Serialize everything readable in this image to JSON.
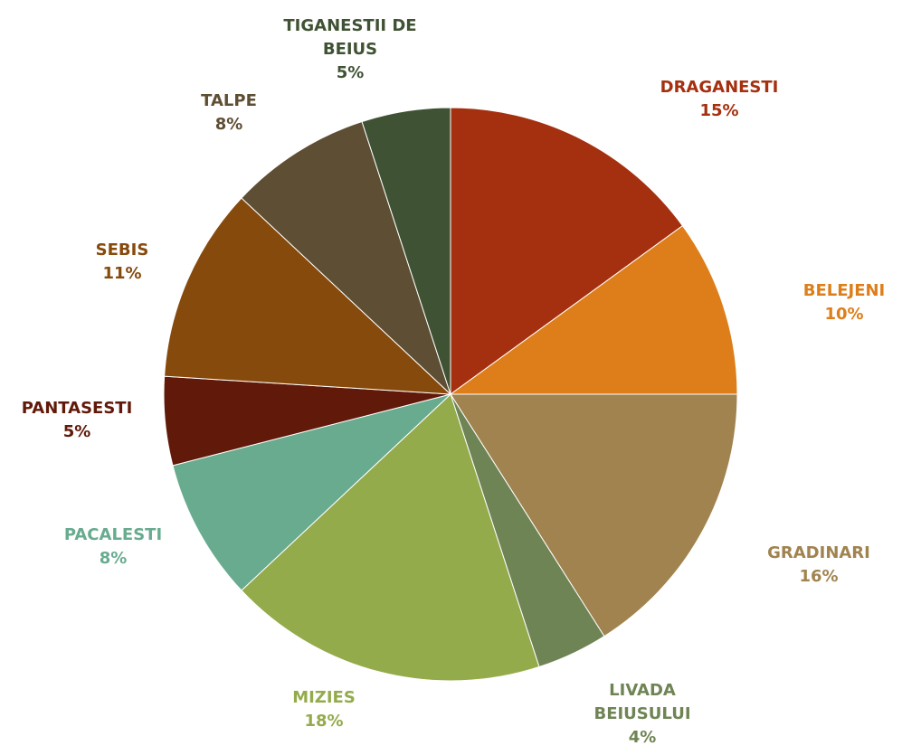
{
  "chart_data": {
    "type": "pie",
    "categories": [
      "DRAGANESTI",
      "BELEJENI",
      "GRADINARI",
      "LIVADA BEIUSULUI",
      "MIZIES",
      "PACALESTI",
      "PANTASESTI",
      "SEBIS",
      "TALPE",
      "TIGANESTII DE BEIUS"
    ],
    "values": [
      15,
      10,
      16,
      4,
      18,
      8,
      5,
      11,
      8,
      5
    ],
    "value_labels": [
      "15%",
      "10%",
      "16%",
      "4%",
      "18%",
      "8%",
      "5%",
      "11%",
      "8%",
      "5%"
    ],
    "colors": [
      "#a5300f",
      "#dd7e1a",
      "#a0834f",
      "#6f8454",
      "#94ab4c",
      "#68ab8f",
      "#611a0a",
      "#864a0d",
      "#5e4e33",
      "#3f5233"
    ]
  }
}
